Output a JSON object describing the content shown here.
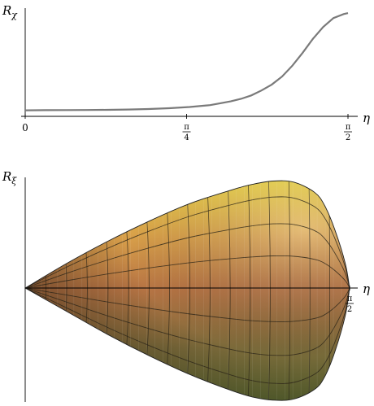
{
  "chart_data": [
    {
      "type": "line",
      "title": "",
      "ylabel": "R",
      "ylabel_sub": "χ",
      "xlabel": "η",
      "xlim": [
        0,
        1.5708
      ],
      "ticks": [
        {
          "value": 0,
          "label": "0"
        },
        {
          "value": 0.7854,
          "num": "π",
          "den": "4"
        },
        {
          "value": 1.5708,
          "num": "π",
          "den": "2"
        }
      ],
      "x": [
        0,
        0.1,
        0.2,
        0.3,
        0.4,
        0.5,
        0.6,
        0.7,
        0.8,
        0.9,
        1.0,
        1.05,
        1.1,
        1.15,
        1.2,
        1.25,
        1.3,
        1.35,
        1.4,
        1.45,
        1.5,
        1.55,
        1.5708
      ],
      "y": [
        0.02,
        0.021,
        0.022,
        0.023,
        0.025,
        0.028,
        0.033,
        0.041,
        0.053,
        0.072,
        0.11,
        0.135,
        0.17,
        0.22,
        0.28,
        0.36,
        0.47,
        0.6,
        0.74,
        0.86,
        0.95,
        0.99,
        1.0
      ],
      "ylim": [
        0,
        1.05
      ],
      "color": "#7a7a7a",
      "grid": false
    },
    {
      "type": "surface",
      "title": "",
      "ylabel": "R",
      "ylabel_sub": "ξ",
      "xlabel": "η",
      "xlim": [
        0,
        1.5708
      ],
      "ticks": [
        {
          "value": 1.5708,
          "num": "π",
          "den": "2"
        }
      ],
      "outline_upper_x": [
        0,
        0.2,
        0.4,
        0.6,
        0.8,
        1.0,
        1.1,
        1.2,
        1.3,
        1.4,
        1.45,
        1.5,
        1.55,
        1.5708
      ],
      "outline_upper_y": [
        0,
        0.22,
        0.42,
        0.6,
        0.76,
        0.88,
        0.93,
        0.96,
        0.95,
        0.86,
        0.74,
        0.52,
        0.22,
        0
      ],
      "outline_lower_y": [
        0,
        -0.22,
        -0.44,
        -0.64,
        -0.82,
        -0.97,
        -1.03,
        -1.06,
        -1.05,
        -0.96,
        -0.84,
        -0.6,
        -0.26,
        0
      ],
      "colors": {
        "top": "#f4e04a",
        "mid": "#b77444",
        "bottom": "#5d6a32"
      }
    }
  ]
}
